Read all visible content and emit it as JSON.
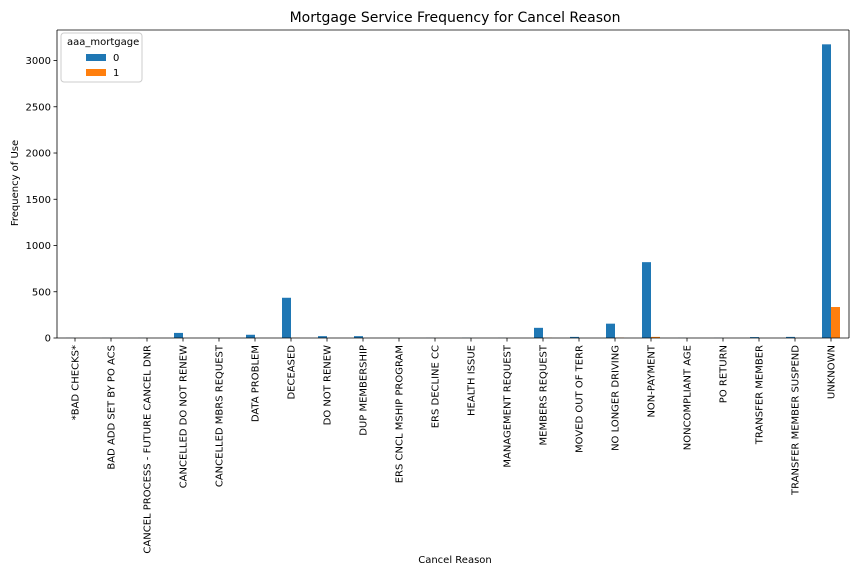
{
  "chart_data": {
    "type": "bar",
    "title": "Mortgage Service Frequency for Cancel Reason",
    "xlabel": "Cancel Reason",
    "ylabel": "Frequency of Use",
    "ylim": [
      0,
      3330
    ],
    "yticks": [
      0,
      500,
      1000,
      1500,
      2000,
      2500,
      3000
    ],
    "grid": false,
    "legend": {
      "title": "aaa_mortgage",
      "placement": "top-left"
    },
    "categories": [
      "*BAD CHECKS*",
      "BAD ADD SET BY PO ACS",
      "CANCEL PROCESS - FUTURE CANCEL DNR",
      "CANCELLED DO NOT RENEW",
      "CANCELLED MBRS REQUEST",
      "DATA PROBLEM",
      "DECEASED",
      "DO NOT RENEW",
      "DUP MEMBERSHIP",
      "ERS CNCL MSHIP PROGRAM",
      "ERS DECLINE CC",
      "HEALTH ISSUE",
      "MANAGEMENT REQUEST",
      "MEMBERS REQUEST",
      "MOVED OUT OF TERR",
      "NO LONGER DRIVING",
      "NON-PAYMENT",
      "NONCOMPLIANT AGE",
      "PO RETURN",
      "TRANSFER MEMBER",
      "TRANSFER MEMBER SUSPEND",
      "UNKNOWN"
    ],
    "series": [
      {
        "name": "0",
        "color": "#1f77b4",
        "values": [
          1,
          1,
          1,
          55,
          1,
          35,
          435,
          20,
          20,
          1,
          1,
          2,
          1,
          110,
          12,
          155,
          820,
          1,
          1,
          10,
          12,
          3175
        ]
      },
      {
        "name": "1",
        "color": "#ff7f0e",
        "values": [
          0,
          0,
          0,
          0,
          0,
          0,
          2,
          0,
          0,
          0,
          0,
          0,
          0,
          2,
          0,
          3,
          12,
          0,
          0,
          0,
          0,
          335
        ]
      }
    ]
  }
}
